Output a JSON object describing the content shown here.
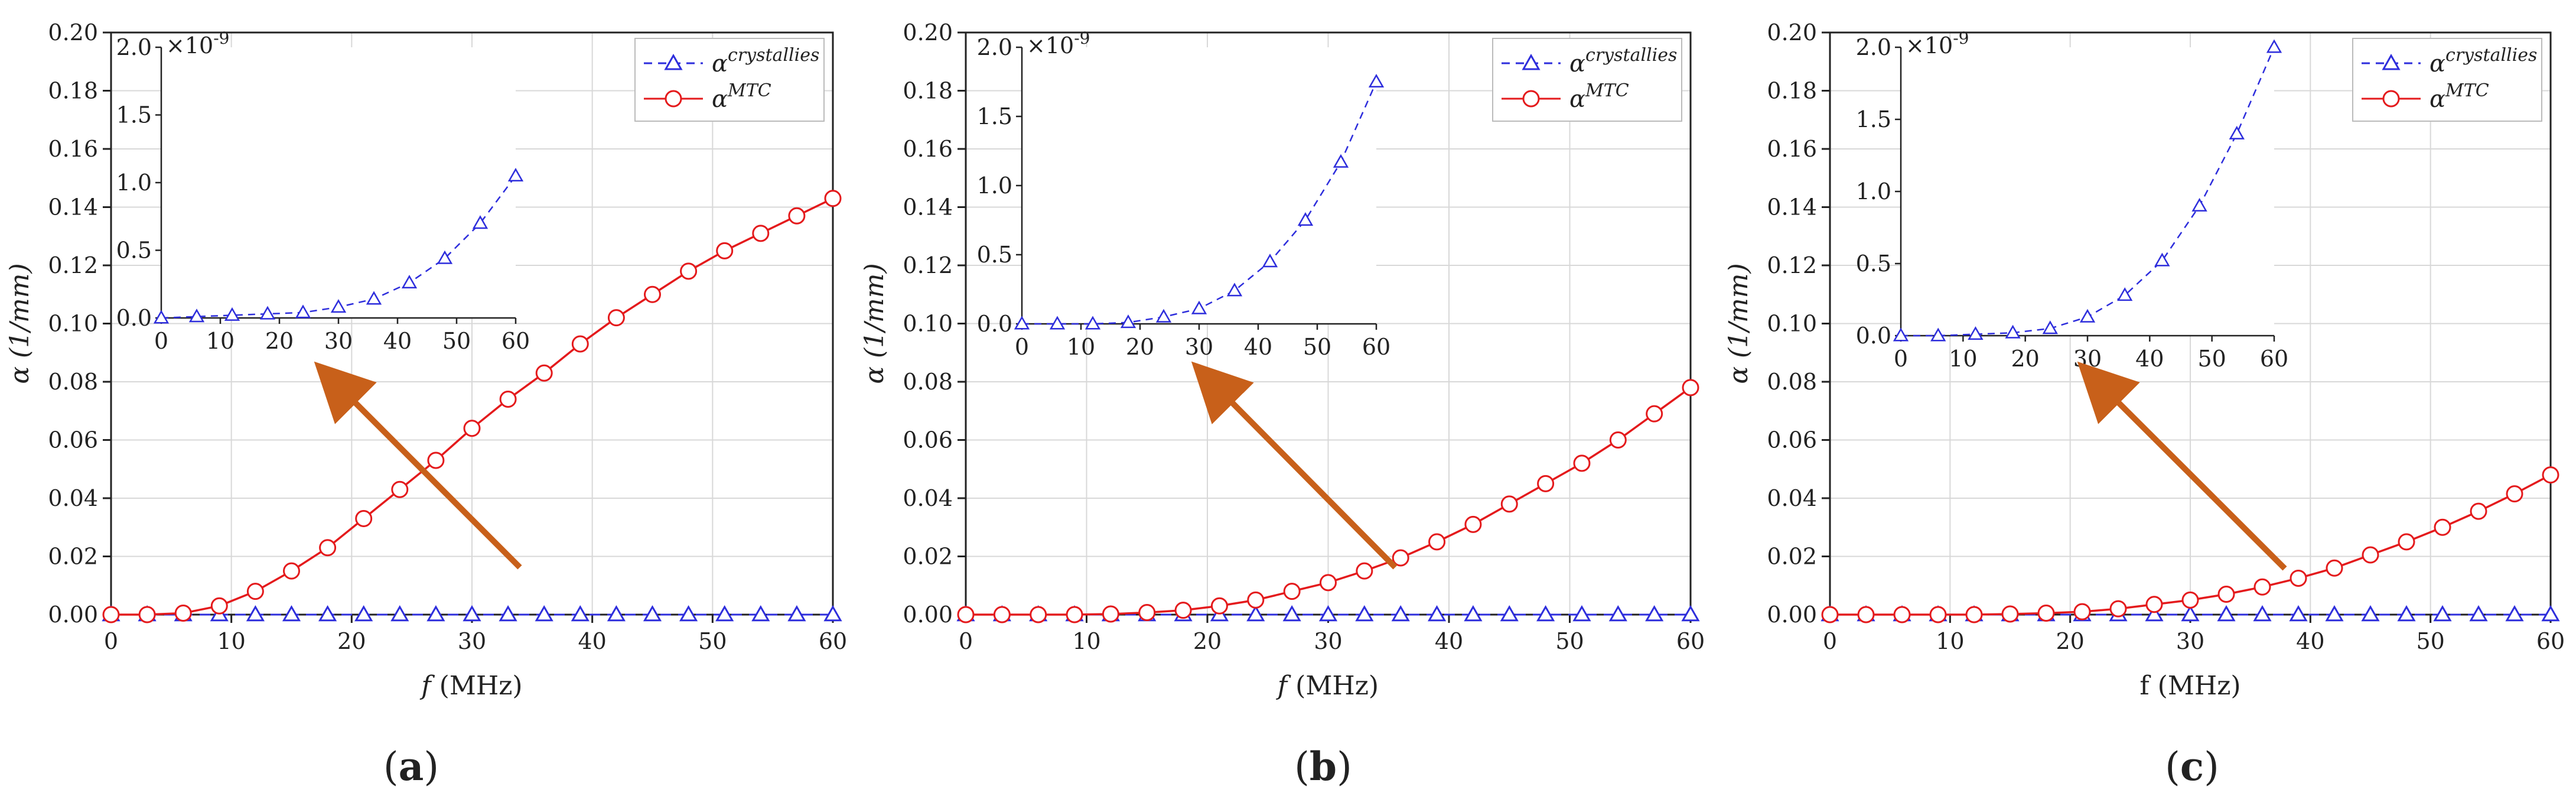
{
  "figure": {
    "labels": [
      "(a)",
      "(b)",
      "(c)"
    ],
    "label_letters": [
      "a",
      "b",
      "c"
    ]
  },
  "legend": {
    "crystal_base": "α",
    "crystal_sup": "crystallies",
    "mtc_base": "α",
    "mtc_sup": "MTC"
  },
  "colors": {
    "crystal": "#2d2ddc",
    "mtc": "#e41a1c",
    "arrow": "#c8601a",
    "axis": "#222222",
    "grid": "#d8d8d8"
  },
  "chart_data": [
    {
      "type": "line",
      "panel": "(a)",
      "xlabel": "f (MHz)",
      "xlabel_italic_f": true,
      "ylabel": "α (1/mm)",
      "xlim": [
        0,
        60
      ],
      "ylim": [
        0,
        0.2
      ],
      "xticks": [
        0,
        10,
        20,
        30,
        40,
        50,
        60
      ],
      "yticks": [
        0.0,
        0.02,
        0.04,
        0.06,
        0.08,
        0.1,
        0.12,
        0.14,
        0.16,
        0.18,
        0.2
      ],
      "grid": true,
      "legend_position": "top-right",
      "series": [
        {
          "name": "α^crystallies",
          "style": "dashed-triangle",
          "x": [
            0,
            3,
            6,
            9,
            12,
            15,
            18,
            21,
            24,
            27,
            30,
            33,
            36,
            39,
            42,
            45,
            48,
            51,
            54,
            57,
            60
          ],
          "y": [
            0,
            0,
            0,
            0,
            0,
            0,
            0,
            0,
            0,
            0,
            0,
            0,
            0,
            0,
            0,
            0,
            0,
            0,
            0,
            0,
            0
          ]
        },
        {
          "name": "α^MTC",
          "style": "solid-circle",
          "x": [
            0,
            3,
            6,
            9,
            12,
            15,
            18,
            21,
            24,
            27,
            30,
            33,
            36,
            39,
            42,
            45,
            48,
            51,
            54,
            57,
            60
          ],
          "y": [
            0.0,
            0.0,
            0.0005,
            0.003,
            0.008,
            0.015,
            0.023,
            0.033,
            0.043,
            0.053,
            0.064,
            0.074,
            0.083,
            0.093,
            0.102,
            0.11,
            0.118,
            0.125,
            0.131,
            0.137,
            0.143
          ]
        }
      ],
      "inset": {
        "series": "α^crystallies",
        "x": [
          0,
          6,
          12,
          18,
          24,
          30,
          36,
          42,
          48,
          54,
          60
        ],
        "y": [
          0.0,
          0.01,
          0.02,
          0.03,
          0.04,
          0.08,
          0.14,
          0.26,
          0.44,
          0.7,
          1.05
        ],
        "xlim": [
          0,
          60
        ],
        "ylim": [
          0,
          2.0
        ],
        "xticks": [
          0,
          10,
          20,
          30,
          40,
          50,
          60
        ],
        "yticks": [
          "0.0",
          "0.5",
          "1.0",
          "1.5",
          "2.0"
        ],
        "multiplier": "×10",
        "multiplier_exp": "-9"
      }
    },
    {
      "type": "line",
      "panel": "(b)",
      "xlabel": "f (MHz)",
      "xlabel_italic_f": true,
      "ylabel": "α (1/mm)",
      "xlim": [
        0,
        60
      ],
      "ylim": [
        0,
        0.2
      ],
      "xticks": [
        0,
        10,
        20,
        30,
        40,
        50,
        60
      ],
      "yticks": [
        0.0,
        0.02,
        0.04,
        0.06,
        0.08,
        0.1,
        0.12,
        0.14,
        0.16,
        0.18,
        0.2
      ],
      "grid": true,
      "legend_position": "top-right",
      "series": [
        {
          "name": "α^crystallies",
          "style": "dashed-triangle",
          "x": [
            0,
            3,
            6,
            9,
            12,
            15,
            18,
            21,
            24,
            27,
            30,
            33,
            36,
            39,
            42,
            45,
            48,
            51,
            54,
            57,
            60
          ],
          "y": [
            0,
            0,
            0,
            0,
            0,
            0,
            0,
            0,
            0,
            0,
            0,
            0,
            0,
            0,
            0,
            0,
            0,
            0,
            0,
            0,
            0
          ]
        },
        {
          "name": "α^MTC",
          "style": "solid-circle",
          "x": [
            0,
            3,
            6,
            9,
            12,
            15,
            18,
            21,
            24,
            27,
            30,
            33,
            36,
            39,
            42,
            45,
            48,
            51,
            54,
            57,
            60
          ],
          "y": [
            0.0,
            0.0,
            0.0,
            0.0,
            0.0002,
            0.0007,
            0.0015,
            0.003,
            0.005,
            0.008,
            0.011,
            0.015,
            0.0195,
            0.025,
            0.031,
            0.038,
            0.045,
            0.052,
            0.06,
            0.069,
            0.078
          ]
        }
      ],
      "inset": {
        "series": "α^crystallies",
        "x": [
          0,
          6,
          12,
          18,
          24,
          30,
          36,
          42,
          48,
          54,
          60
        ],
        "y": [
          0.0,
          0.0,
          0.0,
          0.01,
          0.05,
          0.11,
          0.24,
          0.45,
          0.75,
          1.17,
          1.75
        ],
        "xlim": [
          0,
          60
        ],
        "ylim": [
          0,
          2.0
        ],
        "xticks": [
          0,
          10,
          20,
          30,
          40,
          50,
          60
        ],
        "yticks": [
          "0.0",
          "0.5",
          "1.0",
          "1.5",
          "2.0"
        ],
        "multiplier": "×10",
        "multiplier_exp": "-9"
      }
    },
    {
      "type": "line",
      "panel": "(c)",
      "xlabel": "f (MHz)",
      "xlabel_italic_f": false,
      "ylabel": "α (1/mm)",
      "xlim": [
        0,
        60
      ],
      "ylim": [
        0,
        0.2
      ],
      "xticks": [
        0,
        10,
        20,
        30,
        40,
        50,
        60
      ],
      "yticks": [
        0.0,
        0.02,
        0.04,
        0.06,
        0.08,
        0.1,
        0.12,
        0.14,
        0.16,
        0.18,
        0.2
      ],
      "grid": true,
      "legend_position": "top-right",
      "series": [
        {
          "name": "α^crystallies",
          "style": "dashed-triangle",
          "x": [
            0,
            3,
            6,
            9,
            12,
            15,
            18,
            21,
            24,
            27,
            30,
            33,
            36,
            39,
            42,
            45,
            48,
            51,
            54,
            57,
            60
          ],
          "y": [
            0,
            0,
            0,
            0,
            0,
            0,
            0,
            0,
            0,
            0,
            0,
            0,
            0,
            0,
            0,
            0,
            0,
            0,
            0,
            0,
            0
          ]
        },
        {
          "name": "α^MTC",
          "style": "solid-circle",
          "x": [
            0,
            3,
            6,
            9,
            12,
            15,
            18,
            21,
            24,
            27,
            30,
            33,
            36,
            39,
            42,
            45,
            48,
            51,
            54,
            57,
            60
          ],
          "y": [
            0.0,
            0.0,
            0.0,
            0.0,
            0.0,
            0.0002,
            0.0005,
            0.001,
            0.002,
            0.0035,
            0.005,
            0.007,
            0.0095,
            0.0125,
            0.016,
            0.0205,
            0.025,
            0.03,
            0.0355,
            0.0415,
            0.048
          ]
        }
      ],
      "inset": {
        "series": "α^crystallies",
        "x": [
          0,
          6,
          12,
          18,
          24,
          30,
          36,
          42,
          48,
          54,
          60
        ],
        "y": [
          0.0,
          0.0,
          0.01,
          0.02,
          0.05,
          0.13,
          0.28,
          0.52,
          0.9,
          1.4,
          2.05
        ],
        "xlim": [
          0,
          60
        ],
        "ylim": [
          0,
          2.0
        ],
        "xticks": [
          0,
          10,
          20,
          30,
          40,
          50,
          60
        ],
        "yticks": [
          "0.0",
          "0.5",
          "1.0",
          "1.5",
          "2.0"
        ],
        "multiplier": "×10",
        "multiplier_exp": "-9"
      }
    }
  ]
}
